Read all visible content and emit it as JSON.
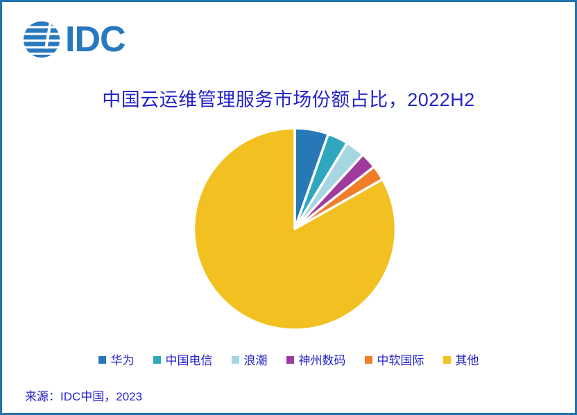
{
  "page": {
    "logo_text": "IDC",
    "title": "中国云运维管理服务市场份额占比，2022H2",
    "source": "来源：IDC中国，2023"
  },
  "colors": {
    "frame_border": "#2273B0",
    "logo_blue": "#2878BE",
    "text_blue": "#2323C8",
    "slice_gap": "#FFFFFF"
  },
  "chart_data": {
    "type": "pie",
    "title": "中国云运维管理服务市场份额占比，2022H2",
    "unit": "%",
    "direction": "clockwise",
    "start_angle": "12-oclock",
    "legend_position": "bottom",
    "grid": false,
    "segments": [
      {
        "label": "华为",
        "value": 5.4,
        "color": "#2878B8"
      },
      {
        "label": "中国电信",
        "value": 3.3,
        "color": "#2FA8BF"
      },
      {
        "label": "浪潮",
        "value": 3.1,
        "color": "#A5D6E2"
      },
      {
        "label": "神州数码",
        "value": 2.6,
        "color": "#A03A9C"
      },
      {
        "label": "中软国际",
        "value": 2.4,
        "color": "#F07D28"
      },
      {
        "label": "其他",
        "value": 83.2,
        "color": "#F2C121"
      }
    ]
  }
}
